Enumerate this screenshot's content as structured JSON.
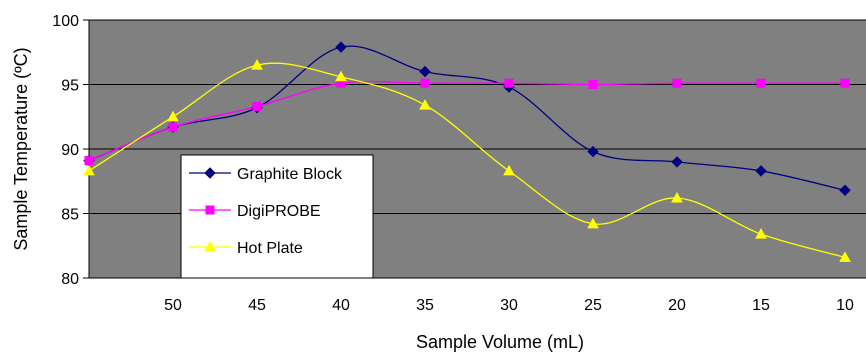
{
  "chart_data": {
    "type": "line",
    "title": "",
    "xlabel": "Sample Volume (mL)",
    "ylabel": "Sample Temperature (ºC)",
    "categories": [
      "",
      "50",
      "45",
      "40",
      "35",
      "30",
      "25",
      "20",
      "15",
      "10"
    ],
    "ylim": [
      80,
      100
    ],
    "yticks": [
      "80",
      "85",
      "90",
      "95",
      "100"
    ],
    "grid": true,
    "legend_position": "left",
    "plot_background": "#808080",
    "series": [
      {
        "name": "Graphite Block",
        "color": "#000080",
        "marker": "diamond",
        "values": [
          89.1,
          91.7,
          93.2,
          97.9,
          96.0,
          94.8,
          89.8,
          89.0,
          88.3,
          86.8
        ]
      },
      {
        "name": "DigiPROBE",
        "color": "#ff00ff",
        "marker": "square",
        "values": [
          89.1,
          91.7,
          93.3,
          95.1,
          95.1,
          95.1,
          95.0,
          95.1,
          95.1,
          95.1
        ]
      },
      {
        "name": "Hot Plate",
        "color": "#ffff00",
        "marker": "triangle",
        "values": [
          88.3,
          92.5,
          96.5,
          95.6,
          93.4,
          88.3,
          84.2,
          86.2,
          83.4,
          81.6
        ]
      }
    ]
  }
}
